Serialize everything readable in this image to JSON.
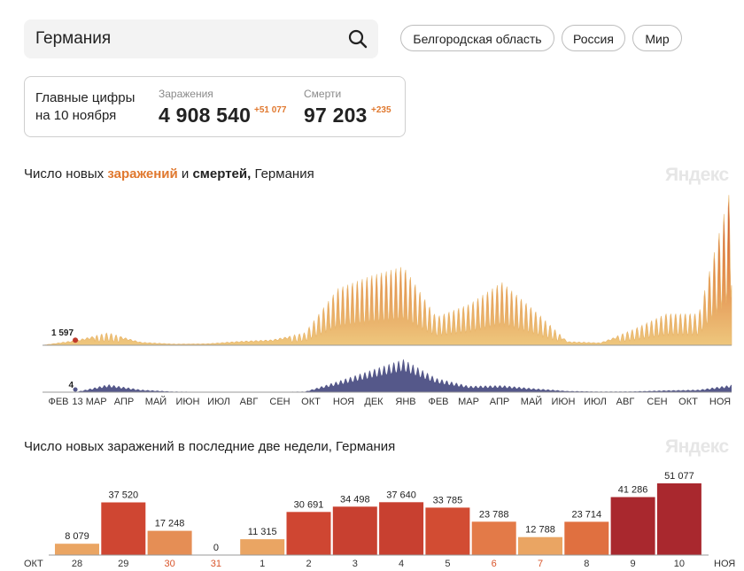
{
  "search": {
    "value": "Германия"
  },
  "regions": [
    "Белгородская область",
    "Россия",
    "Мир"
  ],
  "summary": {
    "title_line1": "Главные цифры",
    "title_line2": "на 10 ноября",
    "cases_label": "Заражения",
    "cases_value": "4 908 540",
    "cases_delta": "+51 077",
    "deaths_label": "Смерти",
    "deaths_value": "97 203",
    "deaths_delta": "+235"
  },
  "chart1": {
    "title_prefix": "Число новых ",
    "title_cases": "заражений",
    "title_and": " и ",
    "title_deaths": "смертей,",
    "title_suffix": " Германия",
    "watermark": "Яндекс",
    "cases_marker_label": "1 597",
    "deaths_marker_label": "4",
    "month_labels": [
      "ФЕВ",
      "13 МАР",
      "АПР",
      "МАЙ",
      "ИЮН",
      "ИЮЛ",
      "АВГ",
      "СЕН",
      "ОКТ",
      "НОЯ",
      "ДЕК",
      "ЯНВ",
      "ФЕВ",
      "МАР",
      "АПР",
      "МАЙ",
      "ИЮН",
      "ИЮЛ",
      "АВГ",
      "СЕН",
      "ОКТ",
      "НОЯ"
    ]
  },
  "chart_data": [
    {
      "type": "area",
      "title": "Число новых заражений и смертей, Германия",
      "x": [
        "ФЕВ",
        "13 МАР",
        "АПР",
        "МАЙ",
        "ИЮН",
        "ИЮЛ",
        "АВГ",
        "СЕН",
        "ОКТ",
        "НОЯ",
        "ДЕК",
        "ЯНВ",
        "ФЕВ",
        "МАР",
        "АПР",
        "МАЙ",
        "ИЮН",
        "ИЮЛ",
        "АВГ",
        "СЕН",
        "ОКТ",
        "НОЯ"
      ],
      "series": [
        {
          "name": "заражений",
          "values": [
            0,
            1597,
            4000,
            1000,
            400,
            500,
            1300,
            1800,
            4000,
            18000,
            22000,
            25000,
            9000,
            13000,
            20000,
            11000,
            1200,
            800,
            5000,
            10000,
            10000,
            51077
          ],
          "color": "#e8b56a"
        },
        {
          "name": "смертей",
          "values": [
            0,
            4,
            250,
            80,
            20,
            10,
            8,
            8,
            20,
            350,
            700,
            1050,
            450,
            200,
            220,
            120,
            40,
            20,
            25,
            60,
            80,
            235
          ],
          "color": "#55588a"
        }
      ],
      "annotations": [
        "1 597",
        "4"
      ]
    },
    {
      "type": "bar",
      "title": "Число новых заражений в последние две недели, Германия",
      "categories": [
        "28",
        "29",
        "30",
        "31",
        "1",
        "2",
        "3",
        "4",
        "5",
        "6",
        "7",
        "8",
        "9",
        "10"
      ],
      "values": [
        8079,
        37520,
        17248,
        0,
        11315,
        30691,
        34498,
        37640,
        33785,
        23788,
        12788,
        23714,
        41286,
        51077
      ],
      "labels": [
        "8 079",
        "37 520",
        "17 248",
        "0",
        "11 315",
        "30 691",
        "34 498",
        "37 640",
        "33 785",
        "23 788",
        "12 788",
        "23 714",
        "41 286",
        "51 077"
      ],
      "weekend": [
        false,
        false,
        true,
        true,
        false,
        false,
        false,
        false,
        false,
        true,
        true,
        false,
        false,
        false
      ],
      "colors": [
        "#eaa563",
        "#cf4632",
        "#e58e55",
        "#e8b06c",
        "#eaa563",
        "#cf4632",
        "#c84030",
        "#c84030",
        "#d24c33",
        "#e37a48",
        "#eaa563",
        "#e07040",
        "#a9282e",
        "#a9282e"
      ],
      "month_left": "ОКТ",
      "month_right": "НОЯ"
    }
  ],
  "chart2": {
    "title": "Число новых заражений в последние две недели, Германия",
    "watermark": "Яндекс"
  }
}
